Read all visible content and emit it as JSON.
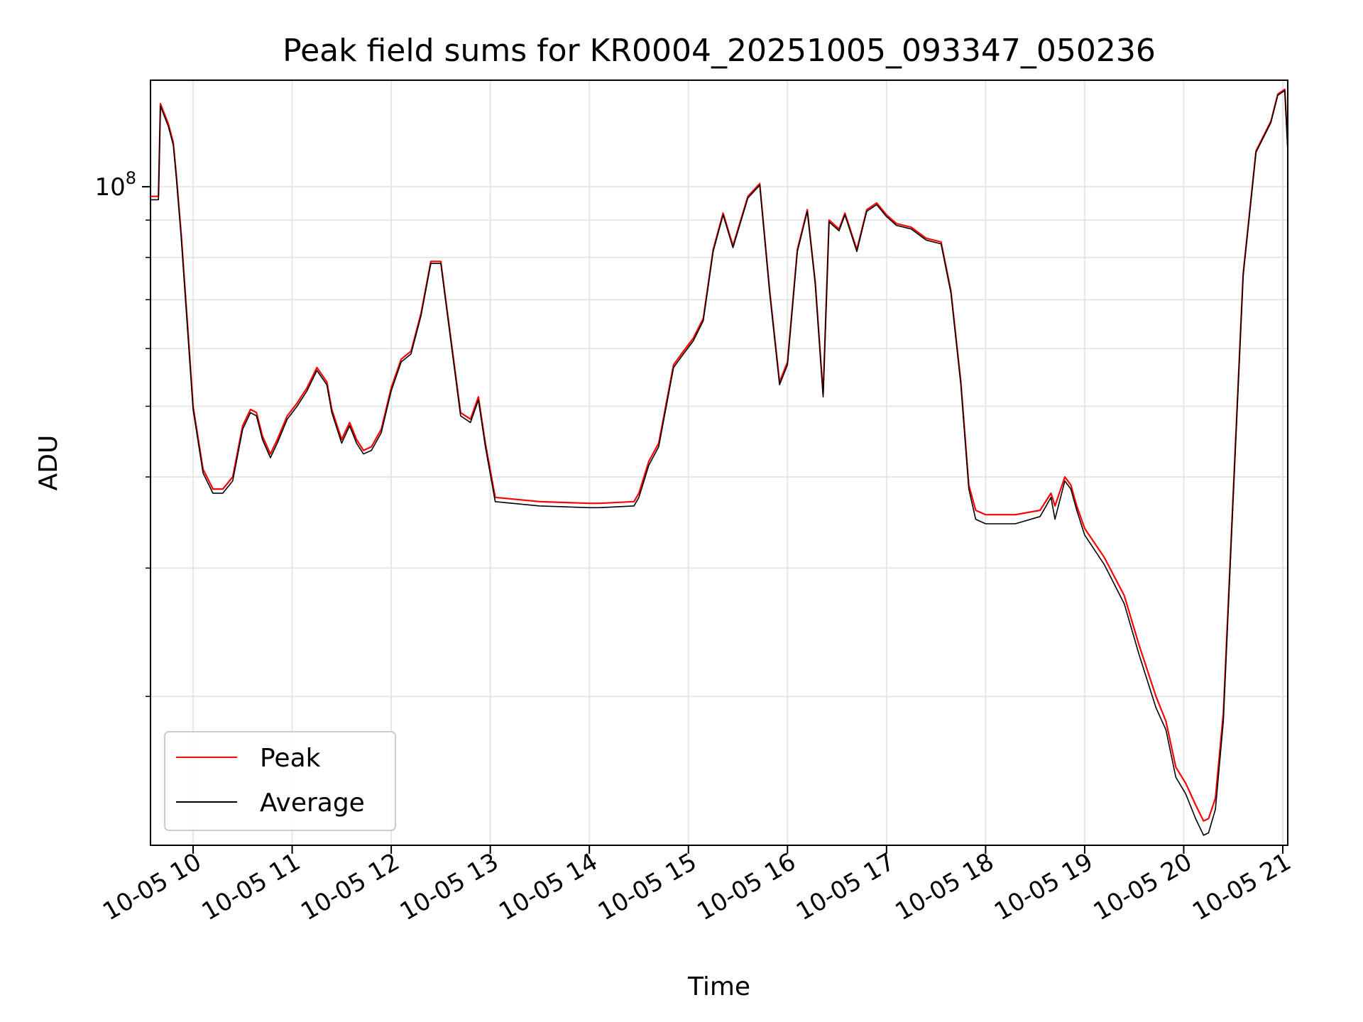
{
  "chart_data": {
    "type": "line",
    "title": "Peak field sums for KR0004_20251005_093347_050236",
    "xlabel": "Time",
    "ylabel": "ADU",
    "yscale": "log",
    "xlim": [
      9.57,
      21.05
    ],
    "ylim": [
      12500000,
      140000000
    ],
    "grid": true,
    "legend_position": "lower-left",
    "x_ticks": [
      10,
      11,
      12,
      13,
      14,
      15,
      16,
      17,
      18,
      19,
      20,
      21
    ],
    "x_tick_labels": [
      "10-05 10",
      "10-05 11",
      "10-05 12",
      "10-05 13",
      "10-05 14",
      "10-05 15",
      "10-05 16",
      "10-05 17",
      "10-05 18",
      "10-05 19",
      "10-05 20",
      "10-05 21"
    ],
    "y_major_ticks": [
      100000000
    ],
    "y_major_tick_labels": [
      "10",
      "8"
    ],
    "y_minor_ticks": [
      20000000,
      30000000,
      40000000,
      50000000,
      60000000,
      70000000,
      80000000,
      90000000
    ],
    "colors": {
      "peak": "#ff0000",
      "average": "#000000"
    },
    "x": [
      9.57,
      9.65,
      9.67,
      9.75,
      9.8,
      9.83,
      9.88,
      9.95,
      10.0,
      10.1,
      10.2,
      10.3,
      10.4,
      10.5,
      10.58,
      10.64,
      10.7,
      10.78,
      10.85,
      10.95,
      11.05,
      11.15,
      11.25,
      11.35,
      11.4,
      11.5,
      11.58,
      11.65,
      11.72,
      11.8,
      11.9,
      12.0,
      12.1,
      12.2,
      12.3,
      12.4,
      12.5,
      12.55,
      12.7,
      12.8,
      12.88,
      12.95,
      13.05,
      13.5,
      14.0,
      14.1,
      14.45,
      14.5,
      14.6,
      14.7,
      14.85,
      14.95,
      15.05,
      15.15,
      15.25,
      15.35,
      15.45,
      15.6,
      15.72,
      15.82,
      15.92,
      16.0,
      16.1,
      16.2,
      16.28,
      16.36,
      16.42,
      16.52,
      16.58,
      16.7,
      16.8,
      16.9,
      17.0,
      17.1,
      17.25,
      17.4,
      17.55,
      17.65,
      17.75,
      17.83,
      17.9,
      18.0,
      18.3,
      18.55,
      18.66,
      18.7,
      18.8,
      18.86,
      18.92,
      19.0,
      19.2,
      19.4,
      19.55,
      19.72,
      19.82,
      19.92,
      20.02,
      20.12,
      20.2,
      20.25,
      20.32,
      20.4,
      20.5,
      20.6,
      20.73,
      20.88,
      20.95,
      21.02,
      21.05
    ],
    "series": [
      {
        "name": "Peak",
        "values": [
          97000000,
          97000000,
          130000000,
          122000000,
          115000000,
          104000000,
          86000000,
          63000000,
          50000000,
          41000000,
          38500000,
          38500000,
          40000000,
          47000000,
          49500000,
          49000000,
          45500000,
          43000000,
          45000000,
          48500000,
          50500000,
          53000000,
          56500000,
          54000000,
          49500000,
          45000000,
          47500000,
          45000000,
          43500000,
          44000000,
          46500000,
          53000000,
          58000000,
          59500000,
          67000000,
          79000000,
          79000000,
          70000000,
          49000000,
          48000000,
          51500000,
          44500000,
          37500000,
          37000000,
          36800000,
          36800000,
          37000000,
          38000000,
          42000000,
          44500000,
          57000000,
          59500000,
          62000000,
          66000000,
          82000000,
          92000000,
          83000000,
          97000000,
          101000000,
          72000000,
          54000000,
          57500000,
          82000000,
          93000000,
          74000000,
          52000000,
          90000000,
          87500000,
          92000000,
          82000000,
          93000000,
          95000000,
          91500000,
          89000000,
          88000000,
          85000000,
          84000000,
          72000000,
          54000000,
          39000000,
          36000000,
          35500000,
          35500000,
          36000000,
          38000000,
          36500000,
          40000000,
          39000000,
          36500000,
          34000000,
          31000000,
          27500000,
          23500000,
          20000000,
          18500000,
          16000000,
          15200000,
          14200000,
          13500000,
          13600000,
          14500000,
          19000000,
          38000000,
          76000000,
          112000000,
          123000000,
          134000000,
          136000000,
          114000000
        ]
      },
      {
        "name": "Average",
        "values": [
          96000000,
          96000000,
          129000000,
          121000000,
          114000000,
          103000000,
          85000000,
          62000000,
          49500000,
          40500000,
          38000000,
          38000000,
          39500000,
          46500000,
          49000000,
          48500000,
          45000000,
          42500000,
          44500000,
          48000000,
          50000000,
          52500000,
          56000000,
          53500000,
          49000000,
          44500000,
          47000000,
          44500000,
          43000000,
          43500000,
          46000000,
          52500000,
          57500000,
          59000000,
          66500000,
          78500000,
          78500000,
          69500000,
          48500000,
          47500000,
          51000000,
          44000000,
          37000000,
          36500000,
          36300000,
          36300000,
          36500000,
          37500000,
          41500000,
          44000000,
          56500000,
          59000000,
          61500000,
          65500000,
          81500000,
          91500000,
          82500000,
          96500000,
          100500000,
          71500000,
          53500000,
          57000000,
          81500000,
          92500000,
          73500000,
          51500000,
          89500000,
          87000000,
          91500000,
          81500000,
          92500000,
          94500000,
          91000000,
          88500000,
          87500000,
          84500000,
          83500000,
          71500000,
          53500000,
          38500000,
          35000000,
          34500000,
          34500000,
          35300000,
          37500000,
          35000000,
          39500000,
          38500000,
          36000000,
          33300000,
          30300000,
          26800000,
          22800000,
          19300000,
          18000000,
          15500000,
          14700000,
          13600000,
          12900000,
          13000000,
          14000000,
          18500000,
          37500000,
          75500000,
          111500000,
          122500000,
          133500000,
          135500000,
          112000000
        ]
      }
    ]
  }
}
